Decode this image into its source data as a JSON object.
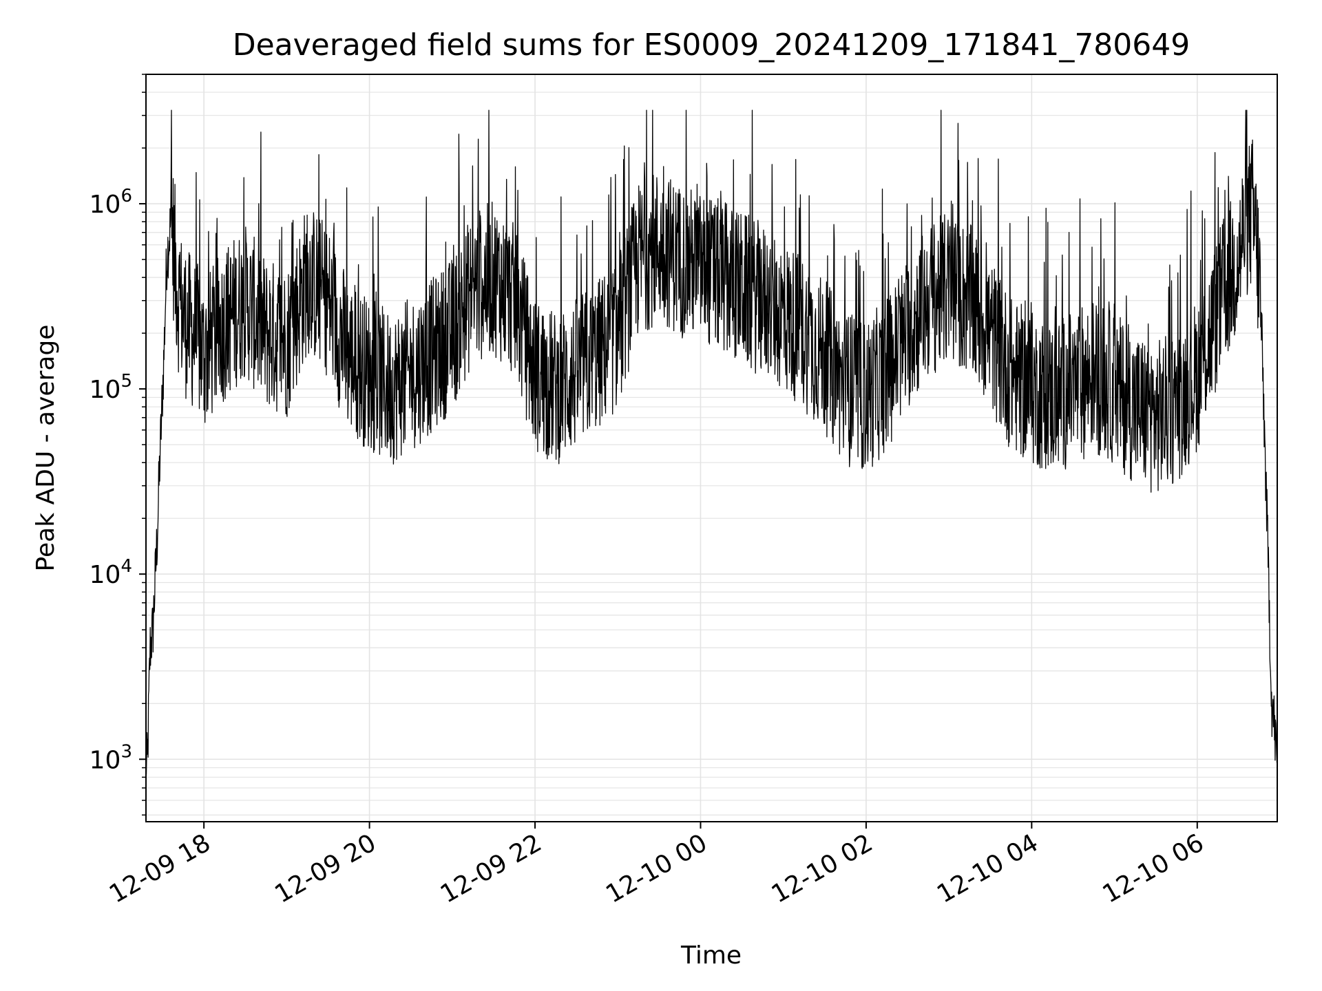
{
  "chart_data": {
    "type": "line",
    "title": "Deaveraged field sums for ES0009_20241209_171841_780649",
    "xlabel": "Time",
    "ylabel": "Peak ADU - average",
    "yscale": "log",
    "ylim": [
      460,
      5000000
    ],
    "xlim": [
      "2024-12-09 17:18",
      "2024-12-10 06:58"
    ],
    "grid": "major and minor",
    "line_color": "#000000",
    "grid_color": "#e3e3e3",
    "x_ticks": [
      {
        "value": "2024-12-09 18:00",
        "label": "12-09 18"
      },
      {
        "value": "2024-12-09 20:00",
        "label": "12-09 20"
      },
      {
        "value": "2024-12-09 22:00",
        "label": "12-09 22"
      },
      {
        "value": "2024-12-10 00:00",
        "label": "12-10 00"
      },
      {
        "value": "2024-12-10 02:00",
        "label": "12-10 02"
      },
      {
        "value": "2024-12-10 04:00",
        "label": "12-10 04"
      },
      {
        "value": "2024-12-10 06:00",
        "label": "12-10 06"
      }
    ],
    "y_ticks": [
      {
        "value": 1000,
        "base": "10",
        "exp": "3"
      },
      {
        "value": 10000,
        "base": "10",
        "exp": "4"
      },
      {
        "value": 100000,
        "base": "10",
        "exp": "5"
      },
      {
        "value": 1000000,
        "base": "10",
        "exp": "6"
      }
    ],
    "series": [
      {
        "x": [
          "2024-12-09 17:18",
          "2024-12-09 17:19",
          "2024-12-09 17:21",
          "2024-12-09 17:23",
          "2024-12-09 17:26",
          "2024-12-09 17:28",
          "2024-12-09 17:31",
          "2024-12-09 17:33",
          "2024-12-09 17:36",
          "2024-12-09 17:38",
          "2024-12-09 17:40",
          "2024-12-09 17:42",
          "2024-12-09 17:45",
          "2024-12-09 17:48",
          "2024-12-09 17:52",
          "2024-12-09 17:56",
          "2024-12-09 18:00",
          "2024-12-09 18:10",
          "2024-12-09 18:20",
          "2024-12-09 18:30",
          "2024-12-09 18:45",
          "2024-12-09 19:00",
          "2024-12-09 19:15",
          "2024-12-09 19:30",
          "2024-12-09 19:45",
          "2024-12-09 20:00",
          "2024-12-09 20:15",
          "2024-12-09 20:30",
          "2024-12-09 20:45",
          "2024-12-09 21:00",
          "2024-12-09 21:15",
          "2024-12-09 21:30",
          "2024-12-09 21:45",
          "2024-12-09 22:00",
          "2024-12-09 22:15",
          "2024-12-09 22:30",
          "2024-12-09 22:45",
          "2024-12-09 23:00",
          "2024-12-09 23:15",
          "2024-12-09 23:30",
          "2024-12-09 23:45",
          "2024-12-10 00:00",
          "2024-12-10 00:15",
          "2024-12-10 00:30",
          "2024-12-10 00:45",
          "2024-12-10 01:00",
          "2024-12-10 01:15",
          "2024-12-10 01:30",
          "2024-12-10 01:45",
          "2024-12-10 02:00",
          "2024-12-10 02:15",
          "2024-12-10 02:30",
          "2024-12-10 02:45",
          "2024-12-10 03:00",
          "2024-12-10 03:15",
          "2024-12-10 03:30",
          "2024-12-10 03:45",
          "2024-12-10 04:00",
          "2024-12-10 04:15",
          "2024-12-10 04:30",
          "2024-12-10 04:45",
          "2024-12-10 05:00",
          "2024-12-10 05:15",
          "2024-12-10 05:30",
          "2024-12-10 05:45",
          "2024-12-10 06:00",
          "2024-12-10 06:10",
          "2024-12-10 06:20",
          "2024-12-10 06:30",
          "2024-12-10 06:35",
          "2024-12-10 06:40",
          "2024-12-10 06:43",
          "2024-12-10 06:46",
          "2024-12-10 06:49",
          "2024-12-10 06:52",
          "2024-12-10 06:54",
          "2024-12-10 06:56",
          "2024-12-10 06:58"
        ],
        "y": [
          1000,
          900,
          4000,
          5000,
          15000,
          40000,
          150000,
          500000,
          800000,
          600000,
          400000,
          300000,
          250000,
          220000,
          200000,
          180000,
          150000,
          200000,
          250000,
          300000,
          200000,
          180000,
          400000,
          300000,
          150000,
          120000,
          100000,
          120000,
          150000,
          200000,
          350000,
          400000,
          300000,
          120000,
          100000,
          120000,
          150000,
          200000,
          500000,
          600000,
          500000,
          450000,
          400000,
          350000,
          300000,
          250000,
          200000,
          150000,
          100000,
          90000,
          120000,
          200000,
          300000,
          350000,
          300000,
          200000,
          120000,
          100000,
          90000,
          100000,
          120000,
          100000,
          80000,
          70000,
          80000,
          120000,
          200000,
          350000,
          500000,
          800000,
          900000,
          600000,
          300000,
          50000,
          8000,
          2000,
          1500,
          900
        ]
      }
    ]
  }
}
